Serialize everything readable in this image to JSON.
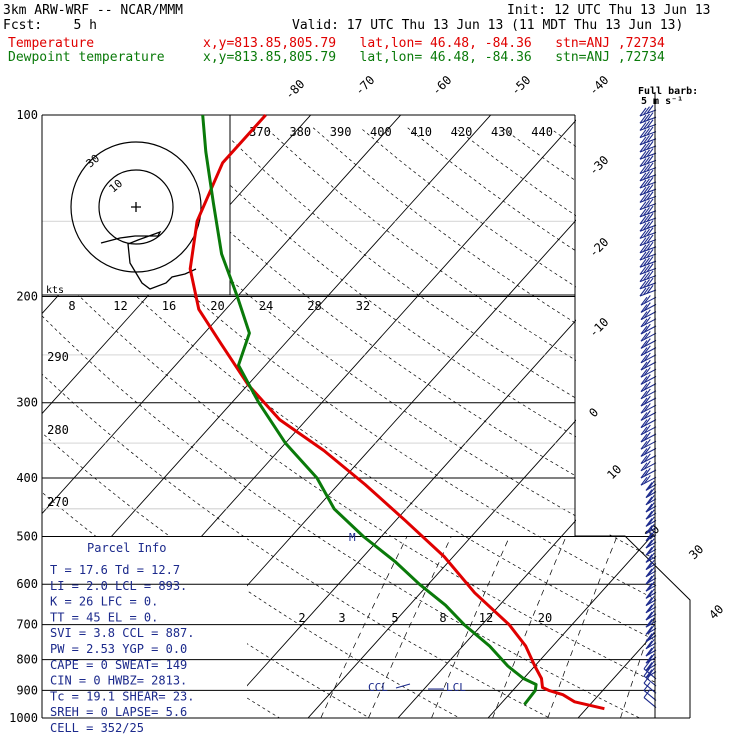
{
  "header": {
    "model": "3km ARW-WRF -- NCAR/MMM",
    "init": "Init: 12 UTC Thu 13 Jun 13",
    "fcst": "Fcst:    5 h",
    "valid": "Valid: 17 UTC Thu 13 Jun 13 (11 MDT Thu 13 Jun 13)",
    "temp_label": "Temperature",
    "temp_loc": "x,y=813.85,805.79   lat,lon= 46.48, -84.36   stn=ANJ ,72734",
    "dew_label": "Dewpoint temperature",
    "dew_loc": "x,y=813.85,805.79   lat,lon= 46.48, -84.36   stn=ANJ ,72734",
    "fullbarb_line1": "Full barb:",
    "fullbarb_line2": "5 m s⁻¹"
  },
  "colors": {
    "temperature": "#e00000",
    "dewpoint": "#0a7a0a",
    "wind_barbs": "#1c2a8c",
    "parcel_text": "#1c2a8c"
  },
  "hodograph": {
    "rings": [
      "30",
      "10"
    ],
    "units": "kts",
    "speed_ticks": [
      "8",
      "12",
      "16",
      "20",
      "24",
      "28",
      "32"
    ]
  },
  "parcel_info": {
    "title": "Parcel Info",
    "rows": [
      "T   =   17.6  Td =  12.7",
      "LI  =    2.0  LCL =  893.",
      "K   =     26  LFC =    0.",
      "TT  =     45  EL  =    0.",
      "SVI =    3.8  CCL =  887.",
      "PW  =   2.53  YGP =   0.0",
      "CAPE =     0  SWEAT=  149",
      "CIN  =     0  HWBZ= 2813.",
      "Tc  =   19.1  SHEAR=  23.",
      "SREH =     0  LAPSE=  5.6",
      "CELL = 352/25"
    ]
  },
  "markers": {
    "ccl": "CCL",
    "lcl": "LCL",
    "m": "M"
  },
  "chart_data": {
    "type": "line",
    "title": "",
    "ylabel": "",
    "y_scale": "log-pressure",
    "pressure_levels": [
      100,
      200,
      300,
      400,
      500,
      600,
      700,
      800,
      900,
      1000
    ],
    "isotherm_labels": [
      "-80",
      "-70",
      "-60",
      "-50",
      "-40",
      "-30",
      "-20",
      "-10",
      "0",
      "10",
      "20",
      "30",
      "40"
    ],
    "theta_e_labels": [
      "370",
      "380",
      "390",
      "400",
      "410",
      "420",
      "430",
      "440"
    ],
    "theta_e_left_labels": [
      "290",
      "280",
      "270"
    ],
    "mixing_ratio_labels": [
      "2",
      "3",
      "5",
      "8",
      "12",
      "20"
    ],
    "series": [
      {
        "name": "Temperature",
        "p": [
          965,
          940,
          915,
          900,
          890,
          860,
          820,
          760,
          700,
          620,
          540,
          470,
          410,
          360,
          320,
          280,
          240,
          210,
          180,
          150,
          120,
          100
        ],
        "t": [
          22,
          18,
          16,
          14,
          13,
          12,
          10,
          7,
          3,
          -4,
          -11,
          -19,
          -27,
          -35,
          -43,
          -50,
          -57,
          -63,
          -68,
          -72,
          -75,
          -75
        ]
      },
      {
        "name": "Dewpoint temperature",
        "p": [
          950,
          900,
          880,
          860,
          820,
          760,
          700,
          650,
          600,
          550,
          500,
          450,
          400,
          350,
          300,
          260,
          230,
          200,
          170,
          140,
          115,
          100
        ],
        "t": [
          12.7,
          12.5,
          12,
          10,
          7,
          3,
          -2,
          -6,
          -11,
          -16,
          -22,
          -28,
          -33,
          -40,
          -47,
          -53,
          -55,
          -60,
          -66,
          -72,
          -78,
          -82
        ]
      }
    ]
  }
}
